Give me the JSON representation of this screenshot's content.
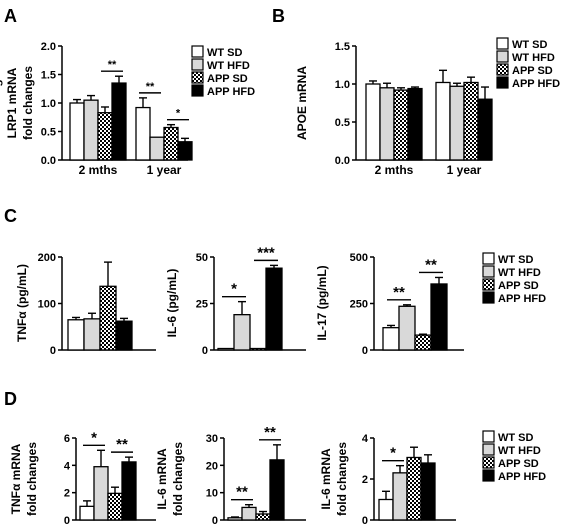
{
  "panel_labels": {
    "A": "A",
    "B": "B",
    "C": "C",
    "D": "D"
  },
  "legend": {
    "entries": [
      "WT SD",
      "WT HFD",
      "APP SD",
      "APP HFD"
    ],
    "patterns": [
      "white",
      "light-gray",
      "checker",
      "black"
    ]
  },
  "colors": {
    "stroke": "#000000",
    "light_gray": "#d9d9d9",
    "black": "#000000",
    "white": "#ffffff"
  },
  "chart_data": [
    {
      "id": "A",
      "type": "bar",
      "ylabel": [
        "LRP1 mRNA",
        "fold changes"
      ],
      "ylim": [
        0,
        2.0
      ],
      "yticks": [
        "0.0",
        "0.5",
        "1.0",
        "1.5",
        "2.0"
      ],
      "categories": [
        "2 mths",
        "1 year"
      ],
      "series": [
        {
          "name": "WT SD",
          "values": [
            1.0,
            0.92
          ],
          "err": [
            0.06,
            0.17
          ]
        },
        {
          "name": "WT HFD",
          "values": [
            1.05,
            0.4
          ],
          "err": [
            0.08,
            0.0
          ]
        },
        {
          "name": "APP SD",
          "values": [
            0.83,
            0.57
          ],
          "err": [
            0.1,
            0.05
          ]
        },
        {
          "name": "APP HFD",
          "values": [
            1.35,
            0.32
          ],
          "err": [
            0.12,
            0.06
          ]
        }
      ],
      "significance": [
        {
          "label": "**",
          "group": 0,
          "from": 2,
          "to": 3
        },
        {
          "label": "**",
          "group": 1,
          "from": 0,
          "to": 1
        },
        {
          "label": "*",
          "group": 1,
          "from": 2,
          "to": 3
        }
      ]
    },
    {
      "id": "B",
      "type": "bar",
      "ylabel": [
        "APOE mRNA",
        "fold changes"
      ],
      "ylim": [
        0,
        1.5
      ],
      "yticks": [
        "0.0",
        "0.5",
        "1.0",
        "1.5"
      ],
      "categories": [
        "2 mths",
        "1 year"
      ],
      "series": [
        {
          "name": "WT SD",
          "values": [
            1.0,
            1.02
          ],
          "err": [
            0.04,
            0.16
          ]
        },
        {
          "name": "WT HFD",
          "values": [
            0.95,
            0.97
          ],
          "err": [
            0.06,
            0.04
          ]
        },
        {
          "name": "APP SD",
          "values": [
            0.92,
            1.02
          ],
          "err": [
            0.03,
            0.07
          ]
        },
        {
          "name": "APP HFD",
          "values": [
            0.94,
            0.8
          ],
          "err": [
            0.02,
            0.16
          ]
        }
      ],
      "significance": []
    },
    {
      "id": "C1",
      "type": "bar",
      "ylabel": [
        "TNFα (pg/mL)"
      ],
      "ylim": [
        0,
        200
      ],
      "yticks": [
        "0",
        "100",
        "200"
      ],
      "series": [
        {
          "name": "WT SD",
          "values": [
            65
          ],
          "err": [
            5
          ]
        },
        {
          "name": "WT HFD",
          "values": [
            67
          ],
          "err": [
            12
          ]
        },
        {
          "name": "APP SD",
          "values": [
            137
          ],
          "err": [
            52
          ]
        },
        {
          "name": "APP HFD",
          "values": [
            62
          ],
          "err": [
            6
          ]
        }
      ],
      "significance": []
    },
    {
      "id": "C2",
      "type": "bar",
      "ylabel": [
        "IL-6 (pg/mL)"
      ],
      "ylim": [
        0,
        50
      ],
      "yticks": [
        "0",
        "25",
        "50"
      ],
      "series": [
        {
          "name": "WT SD",
          "values": [
            0.8
          ],
          "err": [
            0
          ]
        },
        {
          "name": "WT HFD",
          "values": [
            19
          ],
          "err": [
            7
          ]
        },
        {
          "name": "APP SD",
          "values": [
            0.8
          ],
          "err": [
            0
          ]
        },
        {
          "name": "APP HFD",
          "values": [
            44
          ],
          "err": [
            1.5
          ]
        }
      ],
      "significance": [
        {
          "label": "*",
          "from": 0,
          "to": 1
        },
        {
          "label": "***",
          "from": 2,
          "to": 3
        }
      ]
    },
    {
      "id": "C3",
      "type": "bar",
      "ylabel": [
        "IL-17 (pg/mL)"
      ],
      "ylim": [
        0,
        500
      ],
      "yticks": [
        "0",
        "250",
        "500"
      ],
      "series": [
        {
          "name": "WT SD",
          "values": [
            120
          ],
          "err": [
            12
          ]
        },
        {
          "name": "WT HFD",
          "values": [
            235
          ],
          "err": [
            8
          ]
        },
        {
          "name": "APP SD",
          "values": [
            80
          ],
          "err": [
            5
          ]
        },
        {
          "name": "APP HFD",
          "values": [
            355
          ],
          "err": [
            35
          ]
        }
      ],
      "significance": [
        {
          "label": "**",
          "from": 0,
          "to": 1
        },
        {
          "label": "**",
          "from": 2,
          "to": 3
        }
      ]
    },
    {
      "id": "D1",
      "type": "bar",
      "ylabel": [
        "TNFα mRNA",
        "fold changes"
      ],
      "ylim": [
        0,
        6
      ],
      "yticks": [
        "0",
        "2",
        "4",
        "6"
      ],
      "series": [
        {
          "name": "WT SD",
          "values": [
            1.0
          ],
          "err": [
            0.4
          ]
        },
        {
          "name": "WT HFD",
          "values": [
            3.9
          ],
          "err": [
            1.2
          ]
        },
        {
          "name": "APP SD",
          "values": [
            1.95
          ],
          "err": [
            0.45
          ]
        },
        {
          "name": "APP HFD",
          "values": [
            4.25
          ],
          "err": [
            0.35
          ]
        }
      ],
      "significance": [
        {
          "label": "*",
          "from": 0,
          "to": 1
        },
        {
          "label": "**",
          "from": 2,
          "to": 3
        }
      ]
    },
    {
      "id": "D2",
      "type": "bar",
      "ylabel": [
        "IL-6 mRNA",
        "fold changes"
      ],
      "ylim": [
        0,
        30
      ],
      "yticks": [
        "0",
        "10",
        "20",
        "30"
      ],
      "series": [
        {
          "name": "WT SD",
          "values": [
            0.8
          ],
          "err": [
            0.3
          ]
        },
        {
          "name": "WT HFD",
          "values": [
            4.6
          ],
          "err": [
            1
          ]
        },
        {
          "name": "APP SD",
          "values": [
            2.2
          ],
          "err": [
            0.9
          ]
        },
        {
          "name": "APP HFD",
          "values": [
            22
          ],
          "err": [
            5.5
          ]
        }
      ],
      "significance": [
        {
          "label": "**",
          "from": 0,
          "to": 1
        },
        {
          "label": "**",
          "from": 2,
          "to": 3
        }
      ]
    },
    {
      "id": "D3",
      "type": "bar",
      "ylabel": [
        "IL-6 mRNA",
        "fold changes"
      ],
      "ylim": [
        0,
        4
      ],
      "yticks": [
        "0",
        "2",
        "4"
      ],
      "series": [
        {
          "name": "WT SD",
          "values": [
            1.0
          ],
          "err": [
            0.4
          ]
        },
        {
          "name": "WT HFD",
          "values": [
            2.3
          ],
          "err": [
            0.35
          ]
        },
        {
          "name": "APP SD",
          "values": [
            3.05
          ],
          "err": [
            0.5
          ]
        },
        {
          "name": "APP HFD",
          "values": [
            2.78
          ],
          "err": [
            0.4
          ]
        }
      ],
      "significance": [
        {
          "label": "*",
          "from": 0,
          "to": 1
        }
      ]
    }
  ]
}
